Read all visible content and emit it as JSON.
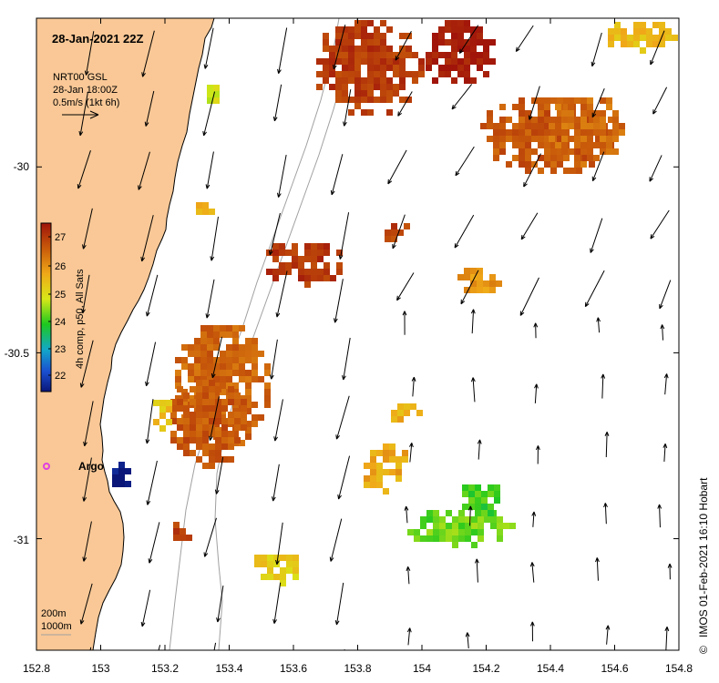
{
  "map": {
    "title": "28-Jan-2021 22Z",
    "current_legend": {
      "line1": "NRT00 GSL",
      "line2": "28-Jan 18:00Z",
      "line3": "0.5m/s (1kt 6h)"
    },
    "colorbar": {
      "label": "4h comp, p50, All Sats",
      "ticks": [
        "27",
        "26",
        "25",
        "24",
        "23",
        "22"
      ],
      "range": [
        21.7,
        27.4
      ]
    },
    "depth_contours": {
      "line1": "200m",
      "line2": "1000m"
    },
    "argo_label": "Argo",
    "credit": "IMOS 01-Feb-2021 16:10 Hobart",
    "copyright_symbol": "©",
    "x_axis": {
      "ticks": [
        "152.8",
        "153",
        "153.2",
        "153.4",
        "153.6",
        "153.8",
        "154",
        "154.2",
        "154.4",
        "154.6",
        "154.8"
      ],
      "range": [
        152.8,
        154.8
      ]
    },
    "y_axis": {
      "ticks": [
        "-30",
        "-30.5",
        "-31"
      ],
      "range": [
        -31.3,
        -29.6
      ]
    },
    "colors": {
      "land": "#f9c896",
      "sst_low": "#0a1678",
      "sst_mid": "#1ec81e",
      "sst_high": "#a0140a",
      "argo": "#e040e0",
      "contour": "#a0a0a0"
    }
  }
}
